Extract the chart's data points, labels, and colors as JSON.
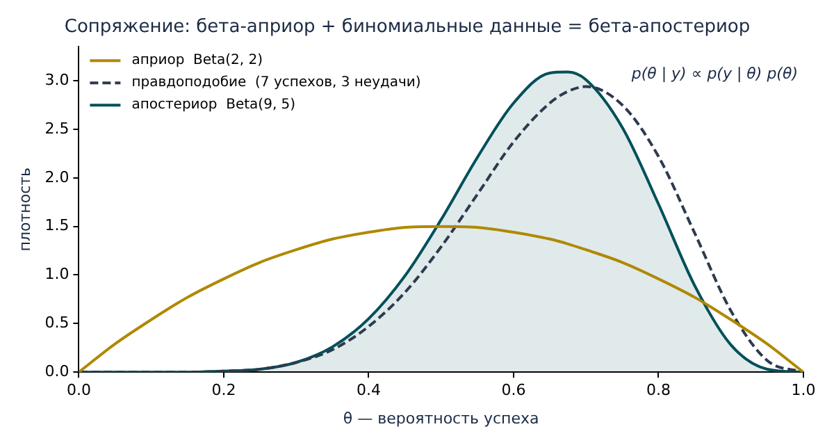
{
  "chart_data": {
    "type": "line",
    "title": "Сопряжение: бета-априор + биномиальные данные = бета-апостериор",
    "xlabel": "θ — вероятность успеха",
    "ylabel": "плотность",
    "x": [
      0,
      0.05,
      0.1,
      0.15,
      0.2,
      0.25,
      0.3,
      0.35,
      0.4,
      0.45,
      0.5,
      0.55,
      0.6,
      0.65,
      0.675,
      0.7,
      0.75,
      0.8,
      0.85,
      0.9,
      0.95,
      1
    ],
    "series": [
      {
        "name": "априор  Beta(2, 2)",
        "type": "line",
        "color": "#b08800",
        "values": [
          0,
          0.29,
          0.54,
          0.77,
          0.96,
          1.13,
          1.26,
          1.37,
          1.44,
          1.49,
          1.5,
          1.49,
          1.44,
          1.37,
          1.32,
          1.26,
          1.13,
          0.96,
          0.77,
          0.54,
          0.29,
          0
        ]
      },
      {
        "name": "правдоподобие  (7 успехов, 3 неудачи)",
        "type": "line",
        "line_style": "dashed",
        "color": "#2e3a4e",
        "values": [
          0,
          0,
          0,
          0,
          0.01,
          0.03,
          0.1,
          0.23,
          0.47,
          0.82,
          1.29,
          1.83,
          2.37,
          2.77,
          2.89,
          2.94,
          2.75,
          2.22,
          1.43,
          0.63,
          0.12,
          0
        ]
      },
      {
        "name": "апостериор  Beta(9, 5)",
        "type": "area",
        "color": "#00505a",
        "values": [
          0,
          0,
          0,
          0,
          0.01,
          0.03,
          0.1,
          0.26,
          0.55,
          0.99,
          1.57,
          2.21,
          2.77,
          3.08,
          3.09,
          3.01,
          2.52,
          1.73,
          0.89,
          0.28,
          0.03,
          0
        ]
      }
    ],
    "xlim": [
      0,
      1
    ],
    "xticks": [
      {
        "value": 0,
        "label": "0.0"
      },
      0.2,
      0.4,
      0.6,
      0.8,
      {
        "value": 1,
        "label": "1.0"
      }
    ],
    "ylim": [
      0,
      3.35
    ],
    "yticks": [
      {
        "value": 0,
        "label": "0.0"
      },
      0.5,
      {
        "value": 1,
        "label": "1.0"
      },
      1.5,
      {
        "value": 2,
        "label": "2.0"
      },
      2.5,
      {
        "value": 3,
        "label": "3.0"
      }
    ],
    "grid": false,
    "legend": "top left",
    "marker": "none",
    "annotations": [
      "p(θ | y) ∝ p(y | θ) p(θ)"
    ]
  }
}
